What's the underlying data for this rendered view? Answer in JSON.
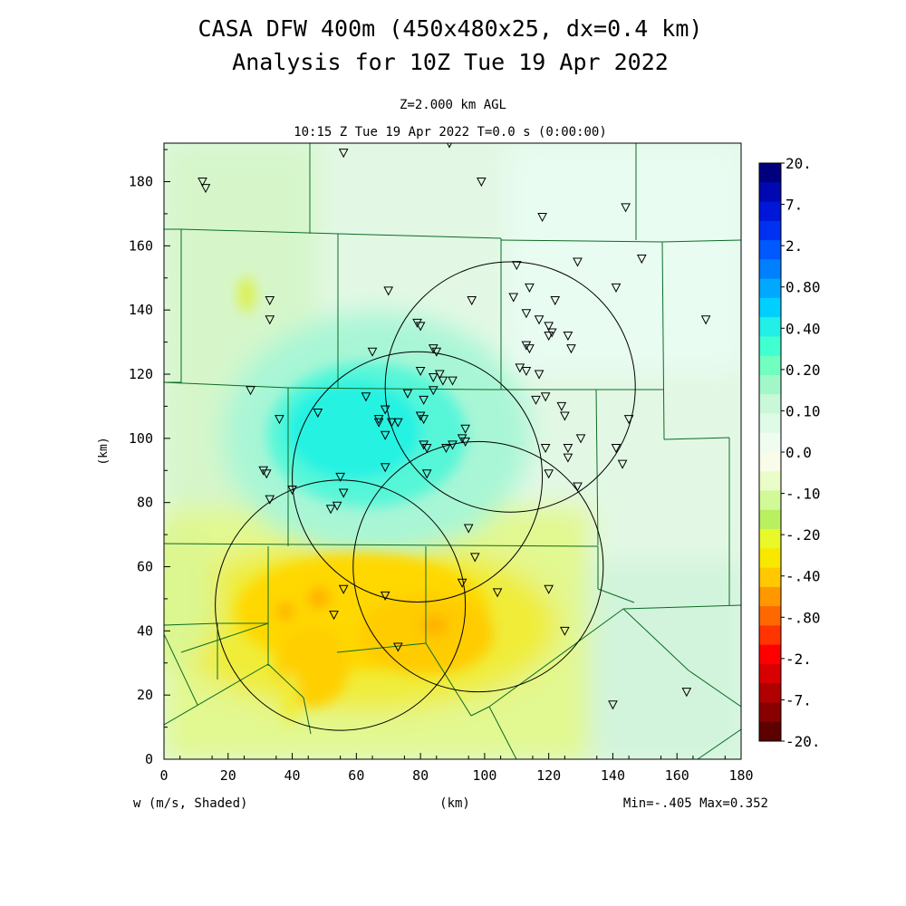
{
  "header": {
    "title_line1": "CASA DFW 400m (450x480x25, dx=0.4 km)",
    "title_line2": "Analysis for 10Z Tue 19 Apr 2022",
    "level": "Z=2.000 km AGL",
    "time": "10:15 Z Tue 19 Apr 2022   T=0.0 s (0:00:00)"
  },
  "footer": {
    "field_label": "w (m/s, Shaded)",
    "x_unit": "(km)",
    "minmax": "Min=-.405 Max=0.352"
  },
  "chart_data": {
    "type": "heatmap",
    "title": "CASA DFW 400m (450x480x25, dx=0.4 km)",
    "subtitle": "Analysis for 10Z Tue 19 Apr 2022",
    "xlabel": "(km)",
    "ylabel": "(km)",
    "field": "w (m/s, Shaded)",
    "xlim": [
      0,
      180
    ],
    "ylim": [
      0,
      192
    ],
    "x_ticks": [
      0,
      20,
      40,
      60,
      80,
      100,
      120,
      140,
      160,
      180
    ],
    "y_ticks": [
      0,
      20,
      40,
      60,
      80,
      100,
      120,
      140,
      160,
      180
    ],
    "min": -0.405,
    "max": 0.352,
    "colorbar": {
      "labels": [
        "20.",
        "7.",
        "2.",
        "0.80",
        "0.40",
        "0.20",
        "0.10",
        "0.0",
        "-.10",
        "-.20",
        "-.40",
        "-.80",
        "-2.",
        "-7.",
        "-20."
      ],
      "colors": [
        "#00007f",
        "#0008b2",
        "#0016d8",
        "#0030f0",
        "#0058ff",
        "#0080ff",
        "#00a8ff",
        "#00d0ff",
        "#22f0e8",
        "#40ffd0",
        "#70ffc0",
        "#a0f8c8",
        "#c8f8d8",
        "#e0fae8",
        "#f0fcf0",
        "#f8fce8",
        "#eafcc8",
        "#d2f898",
        "#b8f060",
        "#e8f828",
        "#f8e800",
        "#ffc800",
        "#ff9800",
        "#ff6800",
        "#ff3400",
        "#ff0000",
        "#d80000",
        "#b00000",
        "#880000",
        "#5c0000"
      ]
    },
    "radar_ranges": [
      {
        "cx": 108,
        "cy": 116,
        "r": 39
      },
      {
        "cx": 79,
        "cy": 88,
        "r": 39
      },
      {
        "cx": 98,
        "cy": 60,
        "r": 39
      },
      {
        "cx": 55,
        "cy": 48,
        "r": 39
      }
    ],
    "stations": [
      [
        12,
        180
      ],
      [
        13,
        178
      ],
      [
        56,
        189
      ],
      [
        89,
        192
      ],
      [
        99,
        180
      ],
      [
        118,
        169
      ],
      [
        144,
        172
      ],
      [
        149,
        156
      ],
      [
        129,
        155
      ],
      [
        110,
        154
      ],
      [
        141,
        147
      ],
      [
        169,
        137
      ],
      [
        33,
        143
      ],
      [
        33,
        137
      ],
      [
        70,
        146
      ],
      [
        96,
        143
      ],
      [
        109,
        144
      ],
      [
        114,
        147
      ],
      [
        122,
        143
      ],
      [
        79,
        136
      ],
      [
        80,
        135
      ],
      [
        113,
        139
      ],
      [
        117,
        137
      ],
      [
        120,
        135
      ],
      [
        121,
        133
      ],
      [
        120,
        132
      ],
      [
        126,
        132
      ],
      [
        127,
        128
      ],
      [
        65,
        127
      ],
      [
        84,
        128
      ],
      [
        85,
        127
      ],
      [
        113,
        129
      ],
      [
        114,
        128
      ],
      [
        27,
        115
      ],
      [
        80,
        121
      ],
      [
        84,
        119
      ],
      [
        86,
        120
      ],
      [
        87,
        118
      ],
      [
        90,
        118
      ],
      [
        111,
        122
      ],
      [
        113,
        121
      ],
      [
        117,
        120
      ],
      [
        63,
        113
      ],
      [
        76,
        114
      ],
      [
        81,
        112
      ],
      [
        84,
        115
      ],
      [
        116,
        112
      ],
      [
        119,
        113
      ],
      [
        124,
        110
      ],
      [
        36,
        106
      ],
      [
        48,
        108
      ],
      [
        67,
        106
      ],
      [
        67,
        105
      ],
      [
        69,
        109
      ],
      [
        71,
        105
      ],
      [
        73,
        105
      ],
      [
        80,
        107
      ],
      [
        81,
        106
      ],
      [
        125,
        107
      ],
      [
        145,
        106
      ],
      [
        69,
        101
      ],
      [
        94,
        103
      ],
      [
        93,
        100
      ],
      [
        94,
        99
      ],
      [
        141,
        97
      ],
      [
        81,
        98
      ],
      [
        82,
        97
      ],
      [
        88,
        97
      ],
      [
        90,
        98
      ],
      [
        119,
        97
      ],
      [
        126,
        97
      ],
      [
        130,
        100
      ],
      [
        31,
        90
      ],
      [
        32,
        89
      ],
      [
        69,
        91
      ],
      [
        82,
        89
      ],
      [
        120,
        89
      ],
      [
        126,
        94
      ],
      [
        143,
        92
      ],
      [
        55,
        88
      ],
      [
        56,
        83
      ],
      [
        129,
        85
      ],
      [
        40,
        84
      ],
      [
        33,
        81
      ],
      [
        52,
        78
      ],
      [
        54,
        79
      ],
      [
        95,
        72
      ],
      [
        97,
        63
      ],
      [
        56,
        53
      ],
      [
        93,
        55
      ],
      [
        69,
        51
      ],
      [
        104,
        52
      ],
      [
        120,
        53
      ],
      [
        53,
        45
      ],
      [
        125,
        40
      ],
      [
        73,
        35
      ],
      [
        140,
        17
      ],
      [
        163,
        21
      ]
    ]
  }
}
